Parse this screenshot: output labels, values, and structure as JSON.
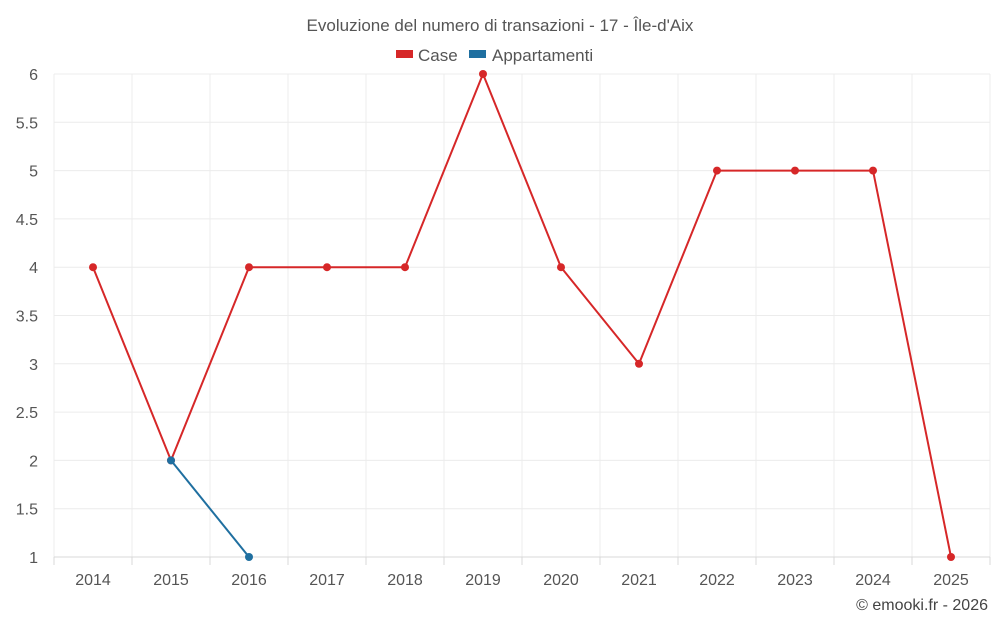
{
  "chart_data": {
    "type": "line",
    "title": "Evoluzione del numero di transazioni - 17 - Île-d'Aix",
    "categories": [
      "2014",
      "2015",
      "2016",
      "2017",
      "2018",
      "2019",
      "2020",
      "2021",
      "2022",
      "2023",
      "2024",
      "2025"
    ],
    "ylim": [
      1,
      6
    ],
    "yticks": [
      "1",
      "1.5",
      "2",
      "2.5",
      "3",
      "3.5",
      "4",
      "4.5",
      "5",
      "5.5",
      "6"
    ],
    "grid": true,
    "legend_position": "top-center",
    "series": [
      {
        "name": "Case",
        "color": "#d62728",
        "values": [
          4,
          2,
          4,
          4,
          4,
          6,
          4,
          3,
          5,
          5,
          5,
          1
        ]
      },
      {
        "name": "Appartamenti",
        "color": "#1f6fa0",
        "values": [
          null,
          2,
          1,
          null,
          null,
          null,
          null,
          null,
          null,
          null,
          null,
          null
        ]
      }
    ]
  },
  "credit": "© emooki.fr - 2026"
}
